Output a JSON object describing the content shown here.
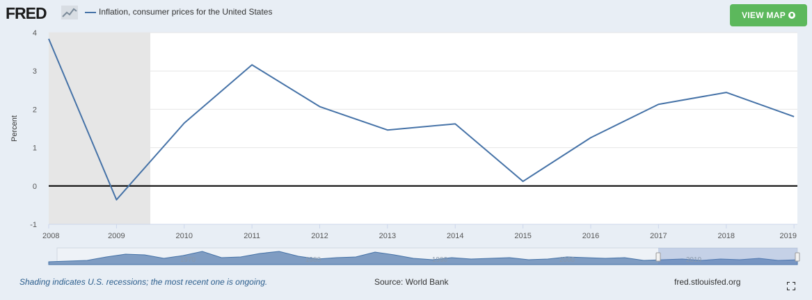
{
  "header": {
    "logo_text": "FRED",
    "series_name": "Inflation, consumer prices for the United States",
    "view_map_label": "VIEW MAP"
  },
  "footer": {
    "recession_note": "Shading indicates U.S. recessions; the most recent one is ongoing.",
    "source": "Source: World Bank",
    "url": "fred.stlouisfed.org"
  },
  "colors": {
    "series": "#4572a7",
    "recession": "#e6e6e6",
    "button": "#5cb85c",
    "background": "#e8eef5"
  },
  "chart_data": {
    "type": "line",
    "ylabel": "Percent",
    "xlabel": "",
    "ylim": [
      -1,
      4
    ],
    "xlim": [
      2008,
      2019.05
    ],
    "yticks": [
      4,
      3,
      2,
      1,
      0,
      -1
    ],
    "xticks": [
      "2008",
      "2009",
      "2010",
      "2011",
      "2012",
      "2013",
      "2014",
      "2015",
      "2016",
      "2017",
      "2018",
      "2019"
    ],
    "series": [
      {
        "name": "Inflation, consumer prices for the United States",
        "x": [
          2008,
          2009,
          2010,
          2011,
          2012,
          2013,
          2014,
          2015,
          2016,
          2017,
          2018,
          2019
        ],
        "values": [
          3.84,
          -0.36,
          1.64,
          3.16,
          2.07,
          1.46,
          1.62,
          0.12,
          1.26,
          2.13,
          2.44,
          1.81
        ]
      }
    ],
    "recession_shading": [
      {
        "start": 2008,
        "end": 2009.5
      }
    ],
    "navigator_labels": [
      "1970",
      "1980",
      "1990",
      "2000",
      "2010"
    ]
  }
}
